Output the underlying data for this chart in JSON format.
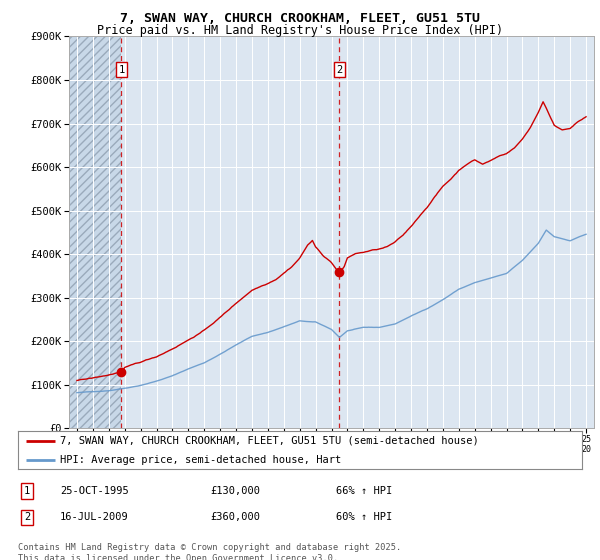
{
  "title_line1": "7, SWAN WAY, CHURCH CROOKHAM, FLEET, GU51 5TU",
  "title_line2": "Price paid vs. HM Land Registry's House Price Index (HPI)",
  "legend_line1": "7, SWAN WAY, CHURCH CROOKHAM, FLEET, GU51 5TU (semi-detached house)",
  "legend_line2": "HPI: Average price, semi-detached house, Hart",
  "footer": "Contains HM Land Registry data © Crown copyright and database right 2025.\nThis data is licensed under the Open Government Licence v3.0.",
  "annotation1_date": "25-OCT-1995",
  "annotation1_price": "£130,000",
  "annotation1_hpi": "66% ↑ HPI",
  "annotation2_date": "16-JUL-2009",
  "annotation2_price": "£360,000",
  "annotation2_hpi": "60% ↑ HPI",
  "red_color": "#cc0000",
  "blue_color": "#6699cc",
  "plot_bg": "#dce6f1",
  "ylim": [
    0,
    900000
  ],
  "xlim_start": 1992.5,
  "xlim_end": 2025.5,
  "vline1_x": 1995.8,
  "vline2_x": 2009.5,
  "marker1_x": 1995.8,
  "marker1_y": 130000,
  "marker2_x": 2009.5,
  "marker2_y": 360000
}
